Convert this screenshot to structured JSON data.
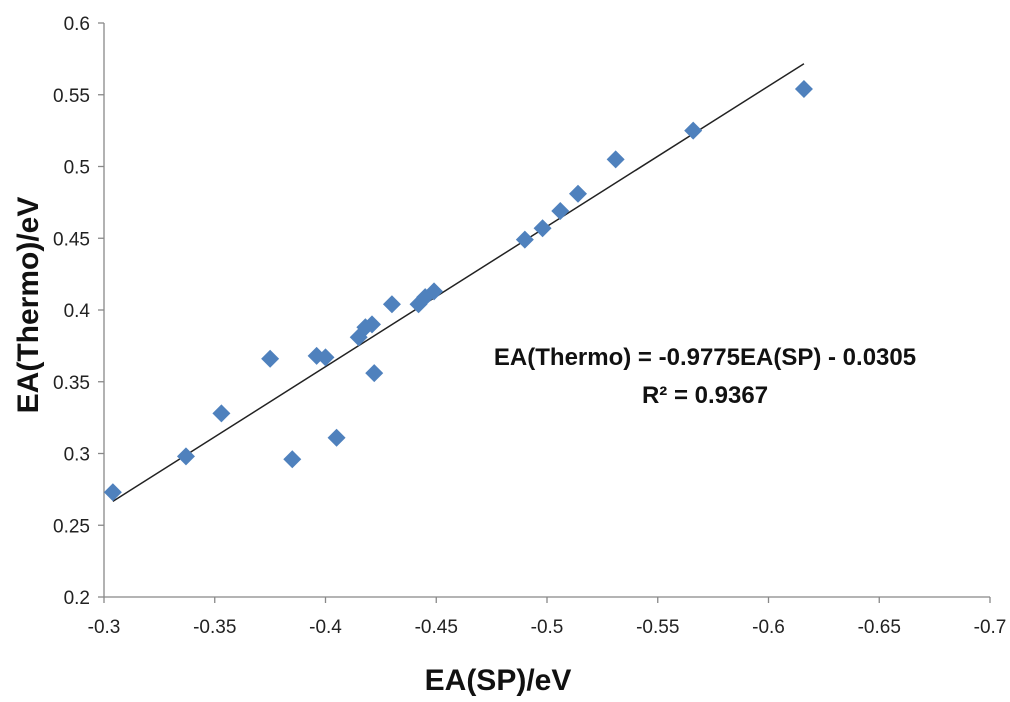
{
  "chart_data": {
    "type": "scatter",
    "xlabel": "EA(SP)/eV",
    "ylabel": "EA(Thermo)/eV",
    "xlim": [
      -0.3,
      -0.7
    ],
    "ylim": [
      0.2,
      0.6
    ],
    "x_reversed": true,
    "x_ticks": [
      -0.3,
      -0.35,
      -0.4,
      -0.45,
      -0.5,
      -0.55,
      -0.6,
      -0.65,
      -0.7
    ],
    "x_tick_labels": [
      "-0.3",
      "-0.35",
      "-0.4",
      "-0.45",
      "-0.5",
      "-0.55",
      "-0.6",
      "-0.65",
      "-0.7"
    ],
    "y_ticks": [
      0.2,
      0.25,
      0.3,
      0.35,
      0.4,
      0.45,
      0.5,
      0.55,
      0.6
    ],
    "y_tick_labels": [
      "0.2",
      "0.25",
      "0.3",
      "0.35",
      "0.4",
      "0.45",
      "0.5",
      "0.55",
      "0.6"
    ],
    "grid": false,
    "marker": "diamond",
    "marker_color": "#4f81bd",
    "trendline_color": "#222222",
    "series": [
      {
        "points": [
          [
            -0.304,
            0.273
          ],
          [
            -0.337,
            0.298
          ],
          [
            -0.353,
            0.328
          ],
          [
            -0.375,
            0.366
          ],
          [
            -0.385,
            0.296
          ],
          [
            -0.396,
            0.368
          ],
          [
            -0.4,
            0.367
          ],
          [
            -0.405,
            0.311
          ],
          [
            -0.415,
            0.381
          ],
          [
            -0.418,
            0.388
          ],
          [
            -0.421,
            0.39
          ],
          [
            -0.422,
            0.356
          ],
          [
            -0.43,
            0.404
          ],
          [
            -0.442,
            0.404
          ],
          [
            -0.445,
            0.409
          ],
          [
            -0.449,
            0.413
          ],
          [
            -0.49,
            0.449
          ],
          [
            -0.498,
            0.457
          ],
          [
            -0.506,
            0.469
          ],
          [
            -0.514,
            0.481
          ],
          [
            -0.531,
            0.505
          ],
          [
            -0.566,
            0.525
          ],
          [
            -0.616,
            0.554
          ]
        ]
      }
    ],
    "trendline": {
      "slope": -0.9775,
      "intercept": -0.0305,
      "x_range": [
        -0.304,
        -0.616
      ]
    },
    "annotation": {
      "equation": "EA(Thermo) = -0.9775EA(SP) - 0.0305",
      "r_squared": "R² = 0.9367"
    }
  }
}
